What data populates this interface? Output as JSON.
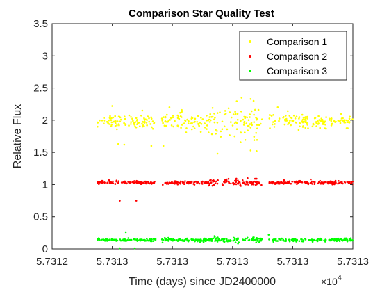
{
  "chart_data": {
    "type": "scatter",
    "title": "Comparison Star Quality Test",
    "xlabel": "Time (days) since JD2400000",
    "ylabel": "Relative Flux",
    "x_exponent_label": "×10",
    "x_exponent_power": "4",
    "x_tick_labels": [
      "5.7312",
      "5.7313",
      "5.7313",
      "5.7313",
      "5.7313",
      "5.7313"
    ],
    "y_tick_labels": [
      "0",
      "0.5",
      "1",
      "1.5",
      "2",
      "2.5",
      "3",
      "3.5"
    ],
    "y_ticks": [
      0,
      0.5,
      1,
      1.5,
      2,
      2.5,
      3,
      3.5
    ],
    "ylim": [
      0,
      3.5
    ],
    "xlim": [
      0,
      1
    ],
    "x_ticks": [
      0,
      0.2,
      0.4,
      0.6,
      0.8,
      1.0
    ],
    "legend_position": "top-right",
    "grid": false,
    "series": [
      {
        "name": "Comparison 1",
        "color": "#ffff00",
        "x_range": [
          0.15,
          1.0
        ],
        "gaps": [
          [
            0.345,
            0.365
          ],
          [
            0.7,
            0.72
          ]
        ],
        "n_points": 420,
        "baseline_y": 1.98,
        "scatter": 0.05,
        "segments": [
          {
            "x": [
              0.15,
              0.34
            ],
            "spread": 0.05
          },
          {
            "x": [
              0.36,
              0.52
            ],
            "spread": 0.07
          },
          {
            "x": [
              0.52,
              0.7
            ],
            "spread": 0.14
          },
          {
            "x": [
              0.72,
              1.0
            ],
            "spread": 0.05
          }
        ],
        "outliers": [
          {
            "x": 0.2,
            "y": 2.22
          },
          {
            "x": 0.22,
            "y": 1.63
          },
          {
            "x": 0.24,
            "y": 1.62
          },
          {
            "x": 0.3,
            "y": 2.15
          },
          {
            "x": 0.33,
            "y": 1.6
          },
          {
            "x": 0.37,
            "y": 1.6
          },
          {
            "x": 0.39,
            "y": 2.2
          },
          {
            "x": 0.55,
            "y": 1.48
          },
          {
            "x": 0.63,
            "y": 2.35
          },
          {
            "x": 0.66,
            "y": 2.33
          },
          {
            "x": 0.66,
            "y": 1.53
          },
          {
            "x": 0.67,
            "y": 2.3
          },
          {
            "x": 0.68,
            "y": 1.52
          },
          {
            "x": 0.75,
            "y": 2.2
          }
        ]
      },
      {
        "name": "Comparison 2",
        "color": "#ff0000",
        "x_range": [
          0.15,
          1.0
        ],
        "gaps": [
          [
            0.345,
            0.365
          ],
          [
            0.7,
            0.72
          ]
        ],
        "n_points": 420,
        "baseline_y": 1.03,
        "scatter": 0.012,
        "segments": [
          {
            "x": [
              0.15,
              0.52
            ],
            "spread": 0.012
          },
          {
            "x": [
              0.52,
              0.7
            ],
            "spread": 0.025
          },
          {
            "x": [
              0.72,
              1.0
            ],
            "spread": 0.012
          }
        ],
        "outliers": [
          {
            "x": 0.225,
            "y": 0.75
          },
          {
            "x": 0.28,
            "y": 0.75
          },
          {
            "x": 0.58,
            "y": 1.08
          },
          {
            "x": 0.65,
            "y": 1.1
          },
          {
            "x": 0.68,
            "y": 1.09
          },
          {
            "x": 0.86,
            "y": 1.08
          }
        ]
      },
      {
        "name": "Comparison 3",
        "color": "#00ff00",
        "x_range": [
          0.15,
          1.0
        ],
        "gaps": [
          [
            0.345,
            0.365
          ],
          [
            0.7,
            0.72
          ]
        ],
        "n_points": 420,
        "baseline_y": 0.14,
        "scatter": 0.012,
        "segments": [
          {
            "x": [
              0.15,
              0.52
            ],
            "spread": 0.012
          },
          {
            "x": [
              0.52,
              0.7
            ],
            "spread": 0.02
          },
          {
            "x": [
              0.72,
              1.0
            ],
            "spread": 0.012
          }
        ],
        "outliers": [
          {
            "x": 0.245,
            "y": 0.26
          },
          {
            "x": 0.225,
            "y": 0.01
          },
          {
            "x": 0.275,
            "y": 0.01
          },
          {
            "x": 0.54,
            "y": 0.2
          },
          {
            "x": 0.61,
            "y": 0.1
          },
          {
            "x": 0.72,
            "y": 0.22
          }
        ]
      }
    ]
  }
}
